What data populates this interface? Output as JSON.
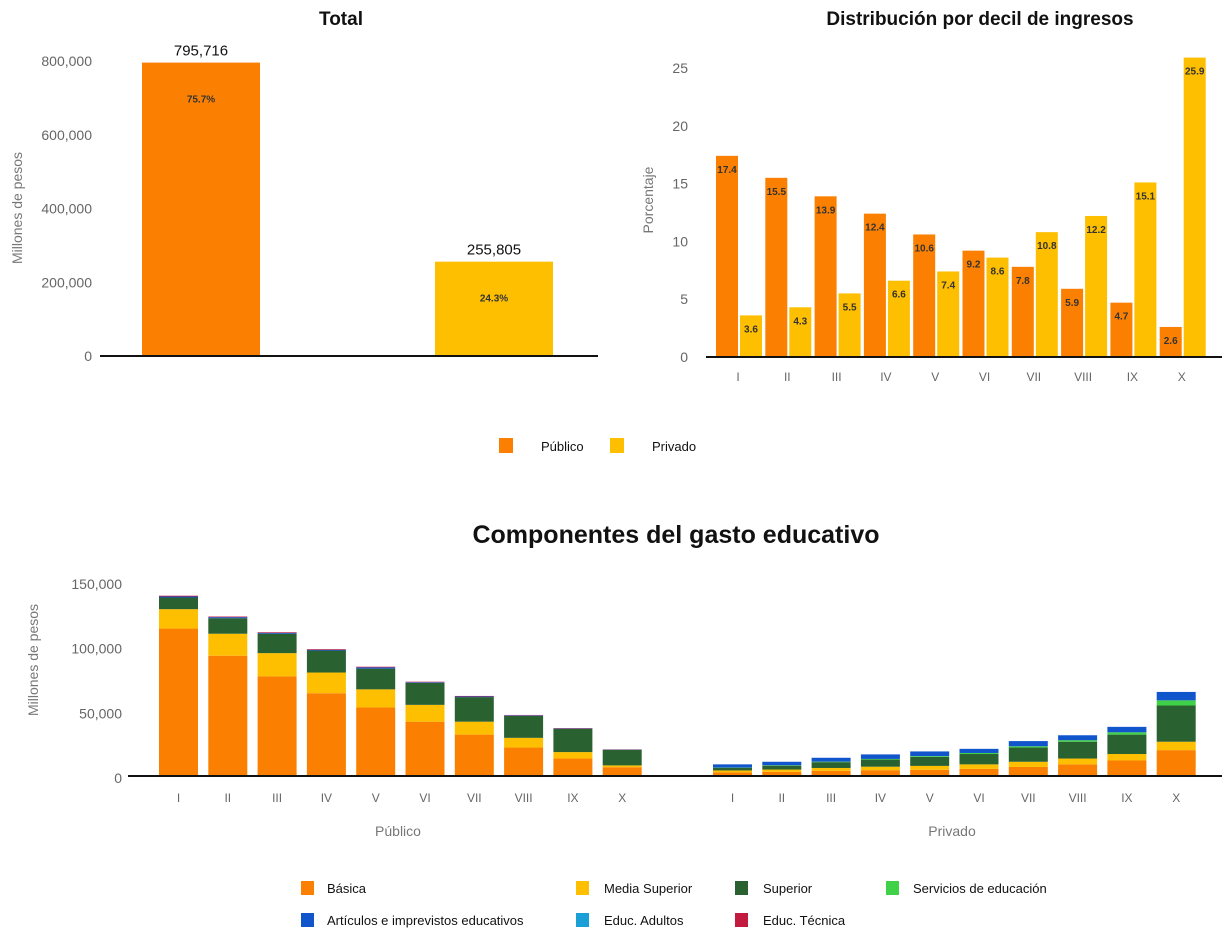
{
  "colors": {
    "publico": "#fb8002",
    "privado": "#fdbf00",
    "basica": "#fb8002",
    "media_superior": "#fdbf00",
    "superior": "#2a6131",
    "servicios": "#3fd147",
    "articulos": "#1155cc",
    "adultos": "#1aa0d6",
    "tecnica": "#c21b3f"
  },
  "legend_top": [
    "Público",
    "Privado"
  ],
  "legend_bottom": [
    "Básica",
    "Media Superior",
    "Superior",
    "Servicios de educación",
    "Artículos e imprevistos educativos",
    "Educ. Adultos",
    "Educ. Técnica"
  ],
  "chart_data": [
    {
      "type": "bar",
      "title": "Total",
      "ylabel": "Millones de pesos",
      "ylim": [
        0,
        800000
      ],
      "yticks": [
        "0",
        "200,000",
        "400,000",
        "600,000",
        "800,000"
      ],
      "categories": [
        "Público",
        "Privado"
      ],
      "values": [
        795716,
        255805
      ],
      "value_labels": [
        "795,716",
        "255,805"
      ],
      "pct_labels": [
        "75.7%",
        "24.3%"
      ]
    },
    {
      "type": "bar",
      "title": "Distribución por decil de ingresos",
      "ylabel": "Porcentaje",
      "ylim": [
        0,
        25
      ],
      "yticks": [
        "0",
        "5",
        "10",
        "15",
        "20",
        "25"
      ],
      "categories": [
        "I",
        "II",
        "III",
        "IV",
        "V",
        "VI",
        "VII",
        "VIII",
        "IX",
        "X"
      ],
      "series": [
        {
          "name": "Público",
          "values": [
            17.4,
            15.5,
            13.9,
            12.4,
            10.6,
            9.2,
            7.8,
            5.9,
            4.7,
            2.6
          ],
          "labels": [
            "17.4",
            "15.5",
            "13.9",
            "12.4",
            "10.6",
            "9.2",
            "7.8",
            "5.9",
            "4.7",
            "2.6"
          ]
        },
        {
          "name": "Privado",
          "values": [
            3.6,
            4.3,
            5.5,
            6.6,
            7.4,
            8.6,
            10.8,
            12.2,
            15.1,
            25.9
          ],
          "labels": [
            "3.6",
            "4.3",
            "5.5",
            "6.6",
            "7.4",
            "8.6",
            "10.8",
            "12.2",
            "15.1",
            "25.9"
          ]
        }
      ]
    },
    {
      "type": "bar",
      "stacked": true,
      "title": "Componentes del gasto educativo",
      "ylabel": "Millones de pesos",
      "ylim": [
        0,
        150000
      ],
      "yticks": [
        "0",
        "50,000",
        "100,000",
        "150,000"
      ],
      "groups": [
        "Público",
        "Privado"
      ],
      "categories": [
        "I",
        "II",
        "III",
        "IV",
        "V",
        "VI",
        "VII",
        "VIII",
        "IX",
        "X"
      ],
      "series": [
        {
          "name": "Básica",
          "publico": [
            114000,
            93000,
            77000,
            64000,
            53000,
            42000,
            32000,
            22000,
            13500,
            6800
          ],
          "privado": [
            2800,
            3200,
            4000,
            4500,
            4800,
            5500,
            7000,
            9000,
            12000,
            20000
          ]
        },
        {
          "name": "Media Superior",
          "publico": [
            15000,
            17000,
            18000,
            16000,
            14000,
            13000,
            10000,
            7500,
            5000,
            1400
          ],
          "privado": [
            1500,
            1800,
            2200,
            2700,
            3000,
            3500,
            4000,
            4500,
            5000,
            6500
          ]
        },
        {
          "name": "Superior",
          "publico": [
            9000,
            12000,
            15000,
            17000,
            16000,
            17000,
            19000,
            17000,
            18000,
            12000
          ],
          "privado": [
            2000,
            3000,
            4500,
            5500,
            7000,
            8000,
            11000,
            13000,
            15000,
            28000
          ]
        },
        {
          "name": "Servicios de educación",
          "publico": [
            0,
            0,
            0,
            0,
            0,
            0,
            0,
            0,
            0,
            0
          ],
          "privado": [
            200,
            300,
            400,
            500,
            600,
            800,
            1000,
            1200,
            1800,
            4000
          ]
        },
        {
          "name": "Artículos e imprevistos educativos",
          "publico": [
            800,
            800,
            700,
            600,
            1000,
            500,
            500,
            400,
            300,
            200
          ],
          "privado": [
            2500,
            2700,
            3000,
            3500,
            3600,
            3200,
            4000,
            3800,
            4200,
            6500
          ]
        },
        {
          "name": "Educ. Adultos",
          "publico": [
            0,
            0,
            0,
            0,
            0,
            0,
            0,
            0,
            0,
            0
          ],
          "privado": [
            0,
            0,
            0,
            0,
            0,
            0,
            0,
            0,
            0,
            0
          ]
        },
        {
          "name": "Educ. Técnica",
          "publico": [
            600,
            500,
            500,
            500,
            500,
            400,
            400,
            300,
            300,
            200
          ],
          "privado": [
            0,
            0,
            0,
            0,
            0,
            0,
            0,
            0,
            0,
            0
          ]
        }
      ]
    }
  ]
}
